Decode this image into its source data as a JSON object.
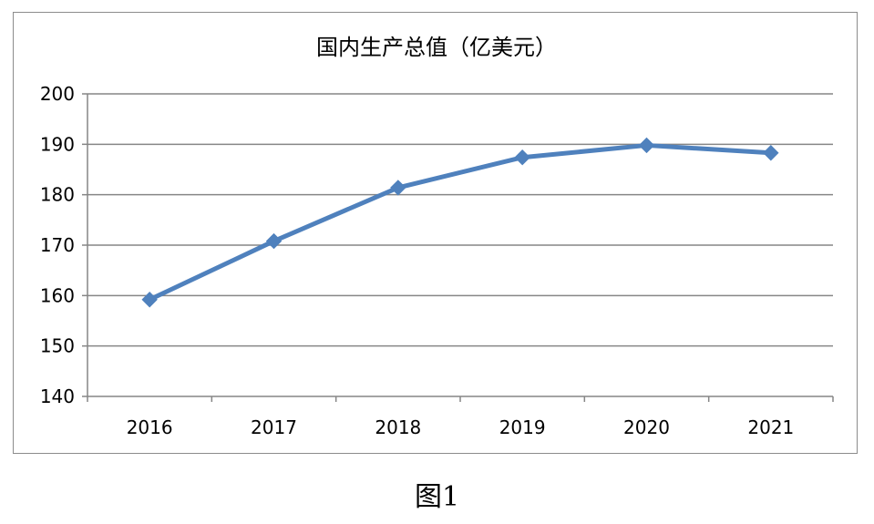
{
  "chart_data": {
    "type": "line",
    "title": "国内生产总值（亿美元）",
    "categories": [
      "2016",
      "2017",
      "2018",
      "2019",
      "2020",
      "2021"
    ],
    "series": [
      {
        "values": [
          159.2,
          170.8,
          181.4,
          187.4,
          189.8,
          188.3
        ]
      }
    ],
    "ylim": [
      140,
      200
    ],
    "yticks": [
      "140",
      "150",
      "160",
      "170",
      "180",
      "190",
      "200"
    ],
    "grid": true,
    "legend": "none",
    "colors": {
      "line": "#4f81bd",
      "grid": "#868686",
      "axis": "#868686",
      "text": "#000000"
    }
  },
  "caption": "图1"
}
